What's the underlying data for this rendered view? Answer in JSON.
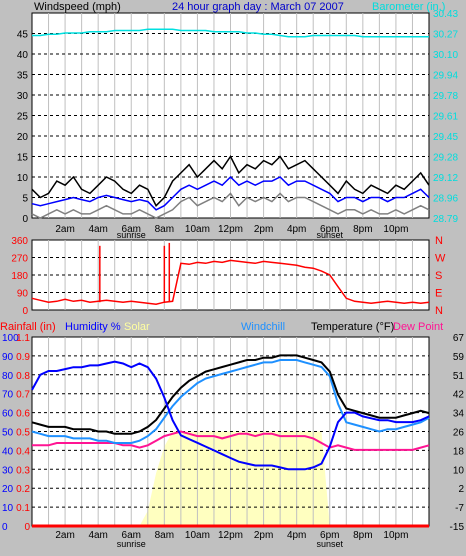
{
  "colors": {
    "background": "#c0c0c0",
    "plot_bg": "#ffffff",
    "wind": "#000000",
    "gust": "#808080",
    "windavg": "#0000ff",
    "barometer": "#00e0e0",
    "direction": "#ff0000",
    "temperature": "#000000",
    "windchill": "#1e90ff",
    "dewpoint": "#ff1493",
    "humidity": "#0000ff",
    "solar": "#ffffc0",
    "rain": "#ff0000",
    "grid_dashed": "#000000",
    "grid_vertical": "#c0c0c0"
  },
  "chart_data": [
    {
      "type": "line",
      "title": "24 hour graph day : March 07 2007",
      "ylabel": "Windspeed (mph)",
      "y2label": "Barometer (in.)",
      "x_ticks": [
        "2am",
        "4am",
        "6am",
        "8am",
        "10am",
        "12pm",
        "2pm",
        "4pm",
        "6pm",
        "8pm",
        "10pm"
      ],
      "x_subticks": {
        "6am": "sunrise",
        "6pm": "sunset"
      },
      "y_ticks": [
        "0",
        "5",
        "10",
        "15",
        "20",
        "25",
        "30",
        "35",
        "40",
        "45"
      ],
      "y2_ticks": [
        "28.79",
        "28.96",
        "29.12",
        "29.28",
        "29.45",
        "29.61",
        "29.78",
        "29.94",
        "30.10",
        "30.27",
        "30.43"
      ],
      "ylim": [
        0,
        50
      ],
      "y2lim": [
        28.79,
        30.43
      ],
      "grid": true,
      "x_hours": [
        0,
        0.5,
        1,
        1.5,
        2,
        2.5,
        3,
        3.5,
        4,
        4.5,
        5,
        5.5,
        6,
        6.5,
        7,
        7.5,
        8,
        8.5,
        9,
        9.5,
        10,
        10.5,
        11,
        11.5,
        12,
        12.5,
        13,
        13.5,
        14,
        14.5,
        15,
        15.5,
        16,
        16.5,
        17,
        17.5,
        18,
        18.5,
        19,
        19.5,
        20,
        20.5,
        21,
        21.5,
        22,
        22.5,
        23,
        23.5,
        24
      ],
      "series": [
        {
          "key": "wind_max",
          "values": [
            7,
            5,
            6,
            9,
            8,
            10,
            7,
            6,
            8,
            10,
            9,
            7,
            6,
            8,
            7,
            3,
            5,
            9,
            11,
            13,
            10,
            12,
            14,
            12,
            15,
            11,
            13,
            12,
            14,
            13,
            15,
            12,
            13,
            14,
            12,
            10,
            8,
            6,
            9,
            7,
            6,
            8,
            7,
            6,
            8,
            7,
            9,
            11,
            8
          ]
        },
        {
          "key": "wind_avg",
          "values": [
            3.5,
            3,
            3.5,
            4,
            4.5,
            5,
            4.5,
            4,
            5,
            5.5,
            5,
            4.5,
            4,
            4.5,
            4,
            2,
            3,
            5,
            7,
            8,
            7,
            8,
            9,
            8,
            10,
            8,
            9,
            8,
            9,
            9,
            10,
            8,
            9,
            9,
            8,
            7,
            6,
            4,
            5,
            5,
            4,
            5,
            5,
            4,
            5,
            5,
            6,
            7,
            5
          ]
        },
        {
          "key": "wind_low",
          "values": [
            1,
            0,
            1,
            2,
            1,
            2,
            1,
            1,
            2,
            3,
            2,
            1,
            1,
            2,
            1,
            0,
            1,
            2,
            4,
            5,
            3,
            4,
            5,
            4,
            6,
            3,
            5,
            4,
            5,
            4,
            6,
            4,
            5,
            5,
            4,
            3,
            2,
            1,
            2,
            2,
            1,
            2,
            1,
            1,
            2,
            1,
            2,
            3,
            2
          ]
        },
        {
          "key": "barometer",
          "values": [
            30.25,
            30.25,
            30.26,
            30.26,
            30.27,
            30.27,
            30.27,
            30.28,
            30.28,
            30.28,
            30.29,
            30.29,
            30.29,
            30.29,
            30.3,
            30.3,
            30.3,
            30.3,
            30.29,
            30.29,
            30.29,
            30.29,
            30.28,
            30.28,
            30.28,
            30.28,
            30.27,
            30.27,
            30.26,
            30.26,
            30.25,
            30.24,
            30.24,
            30.24,
            30.25,
            30.25,
            30.25,
            30.25,
            30.25,
            30.25,
            30.24,
            30.24,
            30.24,
            30.24,
            30.24,
            30.24,
            30.24,
            30.24,
            30.24
          ]
        }
      ]
    },
    {
      "type": "line",
      "y_ticks": [
        "0",
        "90",
        "180",
        "270",
        "360"
      ],
      "y2_labels": [
        "N",
        "W",
        "S",
        "E",
        "N"
      ],
      "ylim": [
        0,
        360
      ],
      "grid": true,
      "x_ticks": [
        "2am",
        "4am",
        "6am",
        "8am",
        "10am",
        "12pm",
        "2pm",
        "4pm",
        "6pm",
        "8pm",
        "10pm"
      ],
      "x_subticks": {
        "6am": "sunrise",
        "6pm": "sunset"
      },
      "x_hours": [
        0,
        0.5,
        1,
        1.5,
        2,
        2.5,
        3,
        3.5,
        4,
        4.5,
        5,
        5.5,
        6,
        6.5,
        7,
        7.5,
        8,
        8.5,
        9,
        9.5,
        10,
        10.5,
        11,
        11.5,
        12,
        12.5,
        13,
        13.5,
        14,
        14.5,
        15,
        15.5,
        16,
        16.5,
        17,
        17.5,
        18,
        18.5,
        19,
        19.5,
        20,
        20.5,
        21,
        21.5,
        22,
        22.5,
        23,
        23.5,
        24
      ],
      "series": [
        {
          "key": "direction",
          "values": [
            60,
            50,
            40,
            45,
            55,
            45,
            50,
            40,
            45,
            50,
            45,
            40,
            45,
            40,
            35,
            30,
            40,
            45,
            240,
            235,
            245,
            240,
            250,
            245,
            255,
            250,
            245,
            240,
            250,
            245,
            240,
            235,
            230,
            220,
            215,
            200,
            180,
            120,
            60,
            45,
            40,
            35,
            40,
            45,
            40,
            35,
            40,
            35,
            40
          ]
        }
      ],
      "spikes": [
        {
          "x": 4.1,
          "y": 330
        },
        {
          "x": 8.3,
          "y": 345
        },
        {
          "x": 8.0,
          "y": 330
        }
      ]
    },
    {
      "type": "line",
      "legend": [
        "Rainfall (in)",
        "Humidity %",
        "Solar",
        "Windchill",
        "Temperature (°F)",
        "Dew Point"
      ],
      "y_ticks_left1": [
        "0",
        "10",
        "20",
        "30",
        "40",
        "50",
        "60",
        "70",
        "80",
        "90",
        "100"
      ],
      "y_ticks_left2": [
        "0",
        "0.1",
        "0.2",
        "0.3",
        "0.4",
        "0.5",
        "0.6",
        "0.7",
        "0.8",
        "0.9",
        "1.1"
      ],
      "y_ticks_right": [
        "-15",
        "-7",
        "2",
        "10",
        "18",
        "26",
        "34",
        "42",
        "51",
        "59",
        "67"
      ],
      "ylim": [
        0,
        100
      ],
      "y2lim": [
        -15,
        67
      ],
      "grid": true,
      "x_ticks": [
        "2am",
        "4am",
        "6am",
        "8am",
        "10am",
        "12pm",
        "2pm",
        "4pm",
        "6pm",
        "8pm",
        "10pm"
      ],
      "x_subticks": {
        "6am": "sunrise",
        "6pm": "sunset"
      },
      "x_hours": [
        0,
        0.5,
        1,
        1.5,
        2,
        2.5,
        3,
        3.5,
        4,
        4.5,
        5,
        5.5,
        6,
        6.5,
        7,
        7.5,
        8,
        8.5,
        9,
        9.5,
        10,
        10.5,
        11,
        11.5,
        12,
        12.5,
        13,
        13.5,
        14,
        14.5,
        15,
        15.5,
        16,
        16.5,
        17,
        17.5,
        18,
        18.5,
        19,
        19.5,
        20,
        20.5,
        21,
        21.5,
        22,
        22.5,
        23,
        23.5,
        24
      ],
      "series": [
        {
          "key": "humidity",
          "values": [
            72,
            80,
            82,
            82,
            83,
            84,
            84,
            85,
            85,
            86,
            87,
            86,
            84,
            86,
            84,
            78,
            68,
            56,
            48,
            46,
            44,
            42,
            40,
            38,
            36,
            34,
            33,
            32,
            32,
            32,
            31,
            30,
            30,
            30,
            31,
            33,
            42,
            55,
            60,
            60,
            58,
            57,
            56,
            56,
            55,
            55,
            55,
            56,
            58
          ]
        },
        {
          "key": "temperature",
          "values": [
            30,
            29,
            28,
            28,
            28,
            27,
            27,
            27,
            26,
            26,
            25,
            25,
            25,
            26,
            28,
            31,
            36,
            41,
            45,
            48,
            50,
            52,
            53,
            54,
            55,
            56,
            57,
            57,
            58,
            58,
            59,
            59,
            59,
            58,
            57,
            56,
            52,
            42,
            36,
            35,
            34,
            33,
            32,
            32,
            32,
            33,
            34,
            35,
            34
          ]
        },
        {
          "key": "windchill",
          "values": [
            26,
            25,
            24,
            24,
            24,
            23,
            23,
            23,
            22,
            22,
            21,
            21,
            21,
            22,
            24,
            27,
            32,
            37,
            41,
            44,
            47,
            49,
            50,
            51,
            52,
            53,
            54,
            55,
            56,
            56,
            57,
            57,
            57,
            56,
            55,
            54,
            50,
            38,
            30,
            29,
            28,
            27,
            26,
            27,
            27,
            28,
            29,
            30,
            32
          ]
        },
        {
          "key": "dewpoint",
          "values": [
            20,
            20,
            20,
            21,
            21,
            21,
            21,
            21,
            21,
            21,
            21,
            20,
            20,
            19,
            20,
            22,
            24,
            25,
            26,
            25,
            24,
            24,
            24,
            23,
            24,
            25,
            25,
            24,
            25,
            25,
            24,
            24,
            24,
            24,
            23,
            21,
            19,
            20,
            19,
            18,
            18,
            18,
            18,
            18,
            18,
            18,
            18,
            19,
            20
          ]
        },
        {
          "key": "solar",
          "values": [
            0,
            0,
            0,
            0,
            0,
            0,
            0,
            0,
            0,
            0,
            0,
            0,
            0,
            0,
            8,
            28,
            42,
            50,
            50,
            50,
            50,
            50,
            50,
            50,
            50,
            50,
            50,
            50,
            50,
            50,
            50,
            50,
            50,
            50,
            50,
            50,
            0,
            0,
            0,
            0,
            0,
            0,
            0,
            0,
            0,
            0,
            0,
            0,
            0
          ]
        },
        {
          "key": "rain",
          "values": [
            0,
            0,
            0,
            0,
            0,
            0,
            0,
            0,
            0,
            0,
            0,
            0,
            0,
            0,
            0,
            0,
            0,
            0,
            0,
            0,
            0,
            0,
            0,
            0,
            0,
            0,
            0,
            0,
            0,
            0,
            0,
            0,
            0,
            0,
            0,
            0,
            0,
            0,
            0,
            0,
            0,
            0,
            0,
            0,
            0,
            0,
            0,
            0,
            0
          ]
        }
      ]
    }
  ]
}
